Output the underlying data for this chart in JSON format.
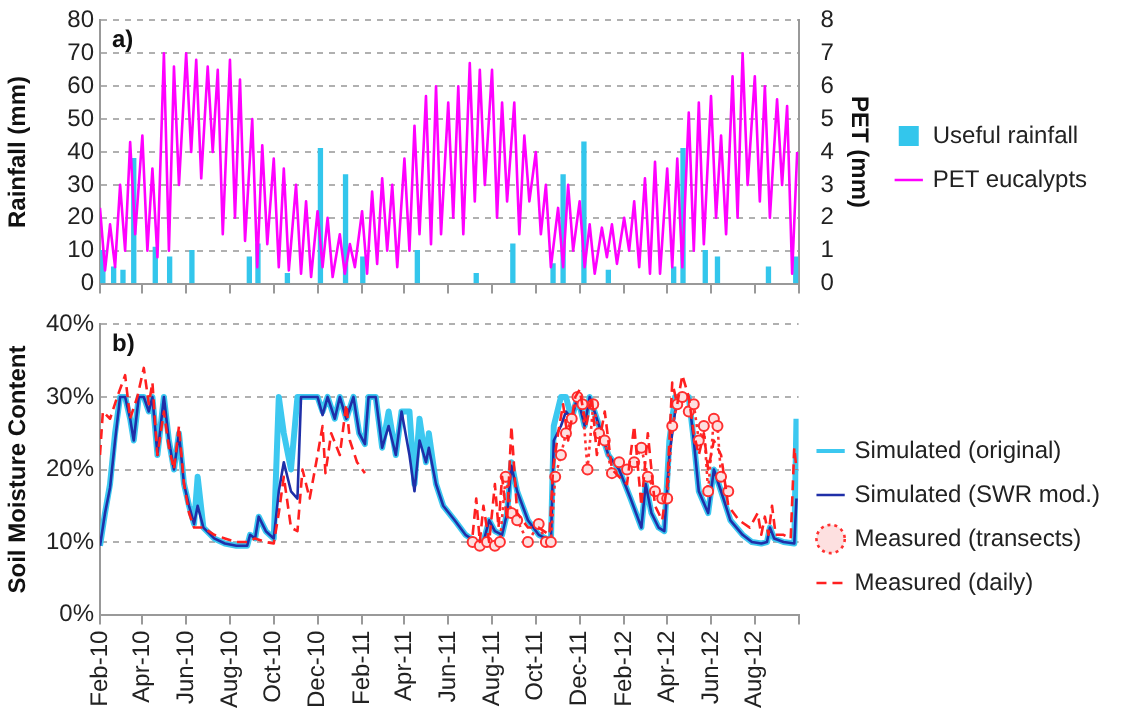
{
  "chart_data": [
    {
      "type": "line",
      "ylabel": "Rainfall (mm)",
      "y2label": "PET (mm)",
      "annotations": [
        "a)"
      ],
      "xlim": [
        "2010-02-01",
        "2012-10-01"
      ],
      "xticks": [
        {
          "value": "2010-02-01",
          "label": null
        },
        {
          "value": "2010-04-01",
          "label": null
        },
        {
          "value": "2010-06-01",
          "label": null
        },
        {
          "value": "2010-08-01",
          "label": null
        },
        {
          "value": "2010-10-01",
          "label": null
        },
        {
          "value": "2010-12-01",
          "label": null
        },
        {
          "value": "2011-02-01",
          "label": null
        },
        {
          "value": "2011-04-01",
          "label": null
        },
        {
          "value": "2011-06-01",
          "label": null
        },
        {
          "value": "2011-08-01",
          "label": null
        },
        {
          "value": "2011-10-01",
          "label": null
        },
        {
          "value": "2011-12-01",
          "label": null
        },
        {
          "value": "2012-02-01",
          "label": null
        },
        {
          "value": "2012-04-01",
          "label": null
        },
        {
          "value": "2012-06-01",
          "label": null
        },
        {
          "value": "2012-08-01",
          "label": null
        },
        {
          "value": "2012-10-01",
          "label": null
        }
      ],
      "ylim": [
        0,
        80
      ],
      "yticks": [
        0,
        10,
        20,
        30,
        40,
        50,
        60,
        70,
        80
      ],
      "y2lim": [
        0,
        8
      ],
      "y2ticks": [
        0,
        1,
        2,
        3,
        4,
        5,
        6,
        7,
        8
      ],
      "grid": "y",
      "legend": "right",
      "tick_labels": "y",
      "series": [
        {
          "name": "Useful rainfall",
          "type": "bar",
          "color": "#33c6ec",
          "x": [
            "2010-02-05",
            "2010-02-20",
            "2010-03-05",
            "2010-03-20",
            "2010-04-19",
            "2010-05-09",
            "2010-06-09",
            "2010-08-28",
            "2010-09-09",
            "2010-10-20",
            "2010-12-05",
            "2011-01-09",
            "2011-02-02",
            "2011-04-19",
            "2011-07-10",
            "2011-08-30",
            "2011-10-25",
            "2011-11-08",
            "2011-12-07",
            "2012-01-10",
            "2012-04-10",
            "2012-04-23",
            "2012-05-24",
            "2012-06-10",
            "2012-08-20",
            "2012-09-27"
          ],
          "values": [
            10,
            5,
            4,
            38,
            11,
            8,
            10,
            8,
            12,
            3,
            41,
            33,
            8,
            10,
            3,
            12,
            6,
            33,
            43,
            4,
            5,
            41,
            10,
            8,
            5,
            8
          ]
        },
        {
          "name": "PET eucalypts",
          "axis": "y2",
          "color": "#ff00ff",
          "x": [
            "2010-02-01",
            "2010-02-08",
            "2010-02-15",
            "2010-02-22",
            "2010-03-01",
            "2010-03-08",
            "2010-03-15",
            "2010-03-22",
            "2010-04-01",
            "2010-04-08",
            "2010-04-15",
            "2010-04-22",
            "2010-05-01",
            "2010-05-08",
            "2010-05-15",
            "2010-05-22",
            "2010-06-01",
            "2010-06-08",
            "2010-06-15",
            "2010-06-22",
            "2010-07-01",
            "2010-07-08",
            "2010-07-15",
            "2010-07-22",
            "2010-08-01",
            "2010-08-08",
            "2010-08-15",
            "2010-08-22",
            "2010-09-01",
            "2010-09-08",
            "2010-09-15",
            "2010-09-22",
            "2010-10-01",
            "2010-10-08",
            "2010-10-15",
            "2010-10-22",
            "2010-11-01",
            "2010-11-08",
            "2010-11-15",
            "2010-11-22",
            "2010-12-01",
            "2010-12-08",
            "2010-12-15",
            "2010-12-22",
            "2011-01-01",
            "2011-01-08",
            "2011-01-15",
            "2011-01-22",
            "2011-02-01",
            "2011-02-08",
            "2011-02-15",
            "2011-02-22",
            "2011-03-01",
            "2011-03-08",
            "2011-03-15",
            "2011-03-22",
            "2011-04-01",
            "2011-04-08",
            "2011-04-15",
            "2011-04-22",
            "2011-05-01",
            "2011-05-08",
            "2011-05-15",
            "2011-05-22",
            "2011-06-01",
            "2011-06-08",
            "2011-06-15",
            "2011-06-22",
            "2011-07-01",
            "2011-07-08",
            "2011-07-15",
            "2011-07-22",
            "2011-08-01",
            "2011-08-08",
            "2011-08-15",
            "2011-08-22",
            "2011-09-01",
            "2011-09-08",
            "2011-09-15",
            "2011-09-22",
            "2011-10-01",
            "2011-10-08",
            "2011-10-15",
            "2011-10-22",
            "2011-11-01",
            "2011-11-08",
            "2011-11-15",
            "2011-11-22",
            "2011-12-01",
            "2011-12-08",
            "2011-12-15",
            "2011-12-22",
            "2012-01-01",
            "2012-01-08",
            "2012-01-15",
            "2012-01-22",
            "2012-02-01",
            "2012-02-08",
            "2012-02-15",
            "2012-02-22",
            "2012-03-01",
            "2012-03-08",
            "2012-03-15",
            "2012-03-22",
            "2012-04-01",
            "2012-04-08",
            "2012-04-15",
            "2012-04-22",
            "2012-05-01",
            "2012-05-08",
            "2012-05-15",
            "2012-05-22",
            "2012-06-01",
            "2012-06-08",
            "2012-06-15",
            "2012-06-22",
            "2012-07-01",
            "2012-07-08",
            "2012-07-15",
            "2012-07-22",
            "2012-08-01",
            "2012-08-08",
            "2012-08-15",
            "2012-08-22",
            "2012-09-01",
            "2012-09-08",
            "2012-09-15",
            "2012-09-22",
            "2012-09-29"
          ],
          "values": [
            2.3,
            0.4,
            1.8,
            0.5,
            3.0,
            1.0,
            4.3,
            1.5,
            4.5,
            1.0,
            3.5,
            0.8,
            7.0,
            1.0,
            6.6,
            3.0,
            7.0,
            4.0,
            6.8,
            3.2,
            6.6,
            4.0,
            6.5,
            1.5,
            6.8,
            2.0,
            6.2,
            1.3,
            5.0,
            0.5,
            4.2,
            1.2,
            3.8,
            0.5,
            3.5,
            0.4,
            3.0,
            0.3,
            2.5,
            0.2,
            2.2,
            0.5,
            2.0,
            0.2,
            1.5,
            0.3,
            1.2,
            0.5,
            2.2,
            0.3,
            2.8,
            0.6,
            3.2,
            1.0,
            3.0,
            0.5,
            3.8,
            1.0,
            4.8,
            1.5,
            5.7,
            1.2,
            6.0,
            1.5,
            5.5,
            2.0,
            6.0,
            1.5,
            6.7,
            2.5,
            6.5,
            3.0,
            6.5,
            2.0,
            5.5,
            2.5,
            5.5,
            1.5,
            4.5,
            2.5,
            4.0,
            1.5,
            3.0,
            0.5,
            2.3,
            0.5,
            3.0,
            1.0,
            2.5,
            0.5,
            1.8,
            0.3,
            1.7,
            0.8,
            1.8,
            0.6,
            2.0,
            1.0,
            2.5,
            0.5,
            3.2,
            0.3,
            3.7,
            0.3,
            3.5,
            0.5,
            3.8,
            0.5,
            5.2,
            1.0,
            5.5,
            1.2,
            5.7,
            2.0,
            4.5,
            1.5,
            6.3,
            2.0,
            7.0,
            3.0,
            6.3,
            2.5,
            6.0,
            2.0,
            5.6,
            3.0,
            5.4,
            0.3,
            4.0
          ]
        }
      ]
    },
    {
      "type": "line",
      "ylabel": "Soil Moisture Content",
      "annotations": [
        "b)"
      ],
      "xlim": [
        "2010-02-01",
        "2012-10-01"
      ],
      "xticks": [
        {
          "value": "2010-02-01",
          "label": "Feb-10"
        },
        {
          "value": "2010-04-01",
          "label": "Apr-10"
        },
        {
          "value": "2010-06-01",
          "label": "Jun-10"
        },
        {
          "value": "2010-08-01",
          "label": "Aug-10"
        },
        {
          "value": "2010-10-01",
          "label": "Oct-10"
        },
        {
          "value": "2010-12-01",
          "label": "Dec-10"
        },
        {
          "value": "2011-02-01",
          "label": "Feb-11"
        },
        {
          "value": "2011-04-01",
          "label": "Apr-11"
        },
        {
          "value": "2011-06-01",
          "label": "Jun-11"
        },
        {
          "value": "2011-08-01",
          "label": "Aug-11"
        },
        {
          "value": "2011-10-01",
          "label": "Oct-11"
        },
        {
          "value": "2011-12-01",
          "label": "Dec-11"
        },
        {
          "value": "2012-02-01",
          "label": "Feb-12"
        },
        {
          "value": "2012-04-01",
          "label": "Apr-12"
        },
        {
          "value": "2012-06-01",
          "label": "Jun-12"
        },
        {
          "value": "2012-08-01",
          "label": "Aug-12"
        },
        {
          "value": "2012-10-01",
          "label": null
        }
      ],
      "ylim": [
        0,
        40
      ],
      "yticks": [
        {
          "value": 0,
          "label": "0%"
        },
        {
          "value": 10,
          "label": "10%"
        },
        {
          "value": 20,
          "label": "20%"
        },
        {
          "value": 30,
          "label": "30%"
        },
        {
          "value": 40,
          "label": "40%"
        }
      ],
      "grid": "y",
      "legend": "right",
      "x": [
        "2010-02-01",
        "2010-02-08",
        "2010-02-15",
        "2010-02-22",
        "2010-03-01",
        "2010-03-08",
        "2010-03-15",
        "2010-03-20",
        "2010-03-27",
        "2010-04-03",
        "2010-04-10",
        "2010-04-15",
        "2010-04-22",
        "2010-05-01",
        "2010-05-08",
        "2010-05-15",
        "2010-05-22",
        "2010-05-29",
        "2010-06-05",
        "2010-06-12",
        "2010-06-17",
        "2010-06-25",
        "2010-07-10",
        "2010-07-25",
        "2010-08-10",
        "2010-08-25",
        "2010-08-29",
        "2010-09-05",
        "2010-09-10",
        "2010-09-20",
        "2010-10-01",
        "2010-10-08",
        "2010-10-15",
        "2010-10-25",
        "2010-11-03",
        "2010-11-08",
        "2010-11-20",
        "2010-12-01",
        "2010-12-08",
        "2010-12-15",
        "2010-12-25",
        "2011-01-01",
        "2011-01-10",
        "2011-01-20",
        "2011-01-28",
        "2011-02-05",
        "2011-02-10",
        "2011-02-20",
        "2011-03-01",
        "2011-03-10",
        "2011-03-20",
        "2011-03-28",
        "2011-04-08",
        "2011-04-15",
        "2011-04-22",
        "2011-05-01",
        "2011-05-05",
        "2011-05-15",
        "2011-05-25",
        "2011-06-10",
        "2011-06-25",
        "2011-07-10",
        "2011-07-20",
        "2011-07-28",
        "2011-08-05",
        "2011-08-15",
        "2011-08-22",
        "2011-08-28",
        "2011-09-05",
        "2011-09-20",
        "2011-10-05",
        "2011-10-15",
        "2011-10-22",
        "2011-10-26",
        "2011-11-05",
        "2011-11-12",
        "2011-11-20",
        "2011-11-28",
        "2011-12-08",
        "2011-12-15",
        "2011-12-25",
        "2012-01-10",
        "2012-01-25",
        "2012-02-10",
        "2012-02-25",
        "2012-03-02",
        "2012-03-10",
        "2012-03-20",
        "2012-03-28",
        "2012-04-04",
        "2012-04-12",
        "2012-04-20",
        "2012-05-01",
        "2012-05-08",
        "2012-05-15",
        "2012-05-28",
        "2012-06-05",
        "2012-06-15",
        "2012-06-28",
        "2012-07-15",
        "2012-07-28",
        "2012-08-10",
        "2012-08-18",
        "2012-08-22",
        "2012-08-28",
        "2012-09-10",
        "2012-09-25",
        "2012-09-28"
      ],
      "series": [
        {
          "name": "Simulated (original)",
          "color": "#3cc8f0",
          "values": [
            9.5,
            14,
            18,
            25,
            30,
            30,
            27,
            24,
            30,
            30,
            28,
            30,
            22,
            30,
            24,
            20,
            25,
            18,
            15,
            12.5,
            19,
            12,
            10.5,
            9.8,
            9.5,
            9.5,
            11,
            10.5,
            13.5,
            11.5,
            10.5,
            30,
            25,
            20,
            30,
            30,
            30,
            30,
            28,
            30,
            27,
            30,
            27,
            30,
            25,
            23.5,
            30,
            30,
            23,
            28,
            22,
            28,
            28,
            18,
            27,
            21,
            25,
            18,
            15,
            13,
            11,
            10,
            10,
            13,
            11.5,
            11,
            14,
            21,
            17,
            13,
            11,
            10.5,
            10,
            26,
            30,
            30,
            27,
            30,
            26,
            30,
            27,
            22,
            20,
            16,
            12,
            18,
            14,
            12,
            11.5,
            24,
            30,
            30,
            30,
            24,
            17,
            14,
            20,
            17,
            13,
            11,
            10,
            9.8,
            10,
            12,
            10.5,
            10,
            9.8,
            27
          ]
        },
        {
          "name": "Simulated (SWR mod.)",
          "color": "#1f2fa8",
          "values": [
            9.5,
            14,
            17.5,
            24,
            30,
            30,
            27,
            24,
            30,
            30,
            28,
            30,
            22,
            30,
            24,
            20,
            25,
            18,
            15,
            12.5,
            15,
            12,
            10.5,
            9.8,
            9.5,
            9.5,
            11,
            10.5,
            13.5,
            11.5,
            10.5,
            17,
            21,
            17,
            16,
            30,
            30,
            30,
            27.5,
            30,
            27,
            30,
            27,
            30,
            25,
            23.5,
            30,
            30,
            23,
            26,
            22,
            28,
            22,
            17,
            24,
            21,
            23,
            18,
            15,
            13,
            11,
            10,
            10,
            13,
            11.5,
            11,
            14,
            20.5,
            17,
            13,
            11,
            10.5,
            10,
            24,
            26,
            28,
            27,
            30,
            26,
            30,
            27,
            22,
            20,
            16,
            12,
            18,
            14,
            12,
            11.5,
            22,
            28,
            30,
            30,
            24,
            17,
            14,
            20,
            17,
            13,
            11,
            10,
            9.8,
            10,
            12,
            10.5,
            10,
            9.8,
            16
          ]
        },
        {
          "name": "Measured (transects)",
          "color": "#ff3030",
          "line_style": "dotted",
          "marker": "circle",
          "x": [
            "2011-07-05",
            "2011-07-15",
            "2011-07-25",
            "2011-08-05",
            "2011-08-12",
            "2011-08-20",
            "2011-08-28",
            "2011-09-05",
            "2011-09-20",
            "2011-10-05",
            "2011-10-15",
            "2011-10-22",
            "2011-10-28",
            "2011-11-05",
            "2011-11-12",
            "2011-11-20",
            "2011-11-28",
            "2011-12-05",
            "2011-12-12",
            "2011-12-20",
            "2011-12-28",
            "2012-01-05",
            "2012-01-15",
            "2012-01-25",
            "2012-02-05",
            "2012-02-15",
            "2012-02-25",
            "2012-03-05",
            "2012-03-15",
            "2012-03-25",
            "2012-04-01",
            "2012-04-08",
            "2012-04-15",
            "2012-04-22",
            "2012-05-01",
            "2012-05-08",
            "2012-05-15",
            "2012-05-22",
            "2012-05-28",
            "2012-06-05",
            "2012-06-10",
            "2012-06-15",
            "2012-06-25"
          ],
          "values": [
            10,
            9.5,
            10,
            9.5,
            10,
            19,
            14,
            13,
            10,
            12.5,
            10,
            10,
            19,
            22,
            25,
            27,
            30,
            29,
            20,
            29,
            25,
            24,
            19.5,
            21,
            20,
            21,
            23,
            19,
            17,
            16,
            16,
            26,
            29,
            30,
            28,
            29,
            24,
            26,
            17,
            27,
            26,
            19,
            17
          ]
        },
        {
          "name": "Measured (daily)",
          "color": "#ff2020",
          "line_style": "dashed",
          "x": [
            "2010-02-01",
            "2010-02-05",
            "2010-02-15",
            "2010-02-25",
            "2010-03-08",
            "2010-03-15",
            "2010-03-25",
            "2010-04-03",
            "2010-04-10",
            "2010-04-15",
            "2010-04-22",
            "2010-05-01",
            "2010-05-08",
            "2010-05-15",
            "2010-05-22",
            "2010-05-29",
            "2010-06-05",
            "2010-06-12",
            "2010-06-25",
            "2010-07-10",
            "2010-07-25",
            "2010-08-10",
            "2010-08-25",
            "2010-09-05",
            "2010-09-20",
            "2010-10-01",
            "2010-10-08",
            "2010-10-15",
            "2010-10-25",
            "2010-11-03",
            "2010-11-10",
            "2010-11-20",
            "2010-12-01",
            "2010-12-08",
            "2010-12-12",
            "2010-12-20",
            "2011-01-01",
            "2011-01-10",
            "2011-01-15",
            "2011-01-25",
            "2011-02-05",
            "2011-06-01",
            "2011-07-05",
            "2011-07-10",
            "2011-07-15",
            "2011-07-20",
            "2011-07-28",
            "2011-08-05",
            "2011-08-10",
            "2011-08-15",
            "2011-08-22",
            "2011-08-28",
            "2011-09-05",
            "2011-09-20",
            "2011-10-05",
            "2011-10-20",
            "2011-10-25",
            "2011-11-01",
            "2011-11-08",
            "2011-11-15",
            "2011-11-25",
            "2011-12-01",
            "2011-12-10",
            "2011-12-18",
            "2011-12-25",
            "2012-01-05",
            "2012-01-15",
            "2012-01-25",
            "2012-02-05",
            "2012-02-15",
            "2012-02-25",
            "2012-03-05",
            "2012-03-15",
            "2012-03-25",
            "2012-04-01",
            "2012-04-08",
            "2012-04-15",
            "2012-04-22",
            "2012-05-01",
            "2012-05-08",
            "2012-05-15",
            "2012-05-22",
            "2012-05-28",
            "2012-06-05",
            "2012-06-15",
            "2012-06-25",
            "2012-07-10",
            "2012-07-25",
            "2012-08-05",
            "2012-08-10",
            "2012-08-15",
            "2012-08-20",
            "2012-08-25",
            "2012-08-30",
            "2012-09-10",
            "2012-09-20",
            "2012-09-25",
            "2012-09-28"
          ],
          "values": [
            22,
            28,
            27,
            30,
            33,
            27,
            30,
            34,
            29,
            32,
            22,
            28,
            23,
            20,
            26,
            18,
            14,
            12,
            12,
            11,
            10.5,
            10,
            10,
            10.5,
            10,
            9.8,
            14,
            19,
            12,
            11.5,
            20,
            16,
            22,
            26,
            19.5,
            25,
            22,
            29,
            24,
            21,
            19.5,
            null,
            11,
            16,
            10,
            15,
            10,
            18,
            12,
            19,
            13,
            26,
            14,
            12,
            12,
            11,
            20,
            25,
            29,
            24,
            30,
            31,
            26,
            30,
            22,
            28,
            20,
            19,
            18,
            26,
            15,
            25,
            15,
            13,
            18,
            32,
            29,
            33,
            30,
            25,
            22,
            25,
            20,
            24,
            22,
            15,
            13,
            12,
            14,
            11,
            13.5,
            11,
            15,
            11,
            11,
            10.5,
            23,
            20
          ]
        }
      ]
    }
  ]
}
